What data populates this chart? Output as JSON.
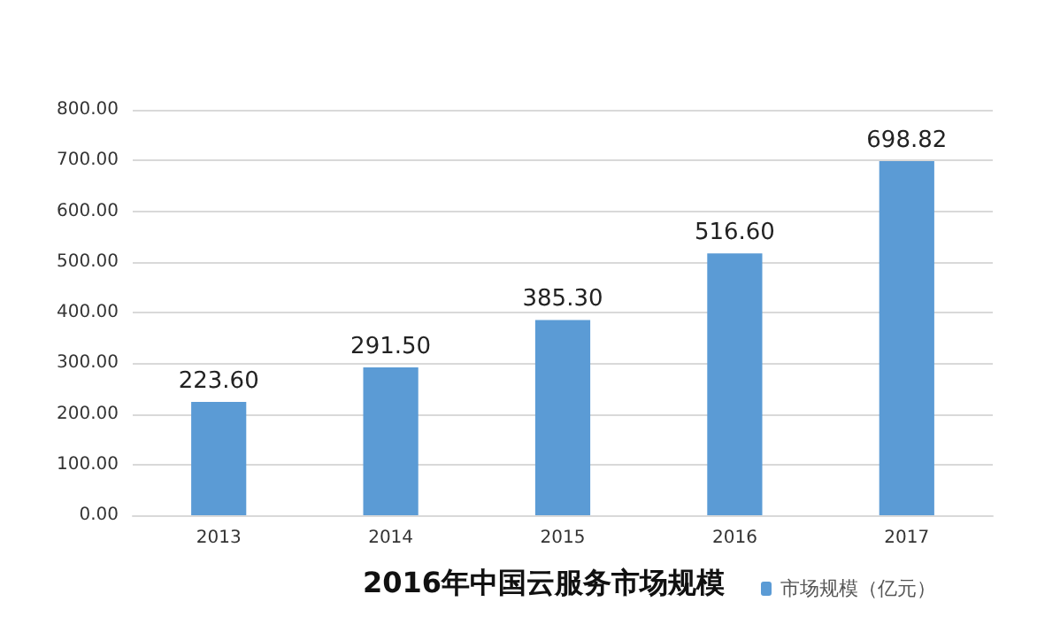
{
  "chart_data": {
    "type": "bar",
    "title": "2016年中国云服务市场规模",
    "categories": [
      "2013",
      "2014",
      "2015",
      "2016",
      "2017"
    ],
    "series": [
      {
        "name": "市场规模（亿元）",
        "color": "#5b9bd5",
        "values": [
          223.6,
          291.5,
          385.3,
          516.6,
          698.82
        ],
        "value_labels": [
          "223.60",
          "291.50",
          "385.30",
          "516.60",
          "698.82"
        ]
      }
    ],
    "ylim": [
      0,
      800
    ],
    "yticks": [
      {
        "value": 0,
        "label": "0.00"
      },
      {
        "value": 100,
        "label": "100.00"
      },
      {
        "value": 200,
        "label": "200.00"
      },
      {
        "value": 300,
        "label": "300.00"
      },
      {
        "value": 400,
        "label": "400.00"
      },
      {
        "value": 500,
        "label": "500.00"
      },
      {
        "value": 600,
        "label": "600.00"
      },
      {
        "value": 700,
        "label": "700.00"
      },
      {
        "value": 800,
        "label": "800.00"
      }
    ],
    "grid": "y",
    "legend": "bottom right"
  }
}
